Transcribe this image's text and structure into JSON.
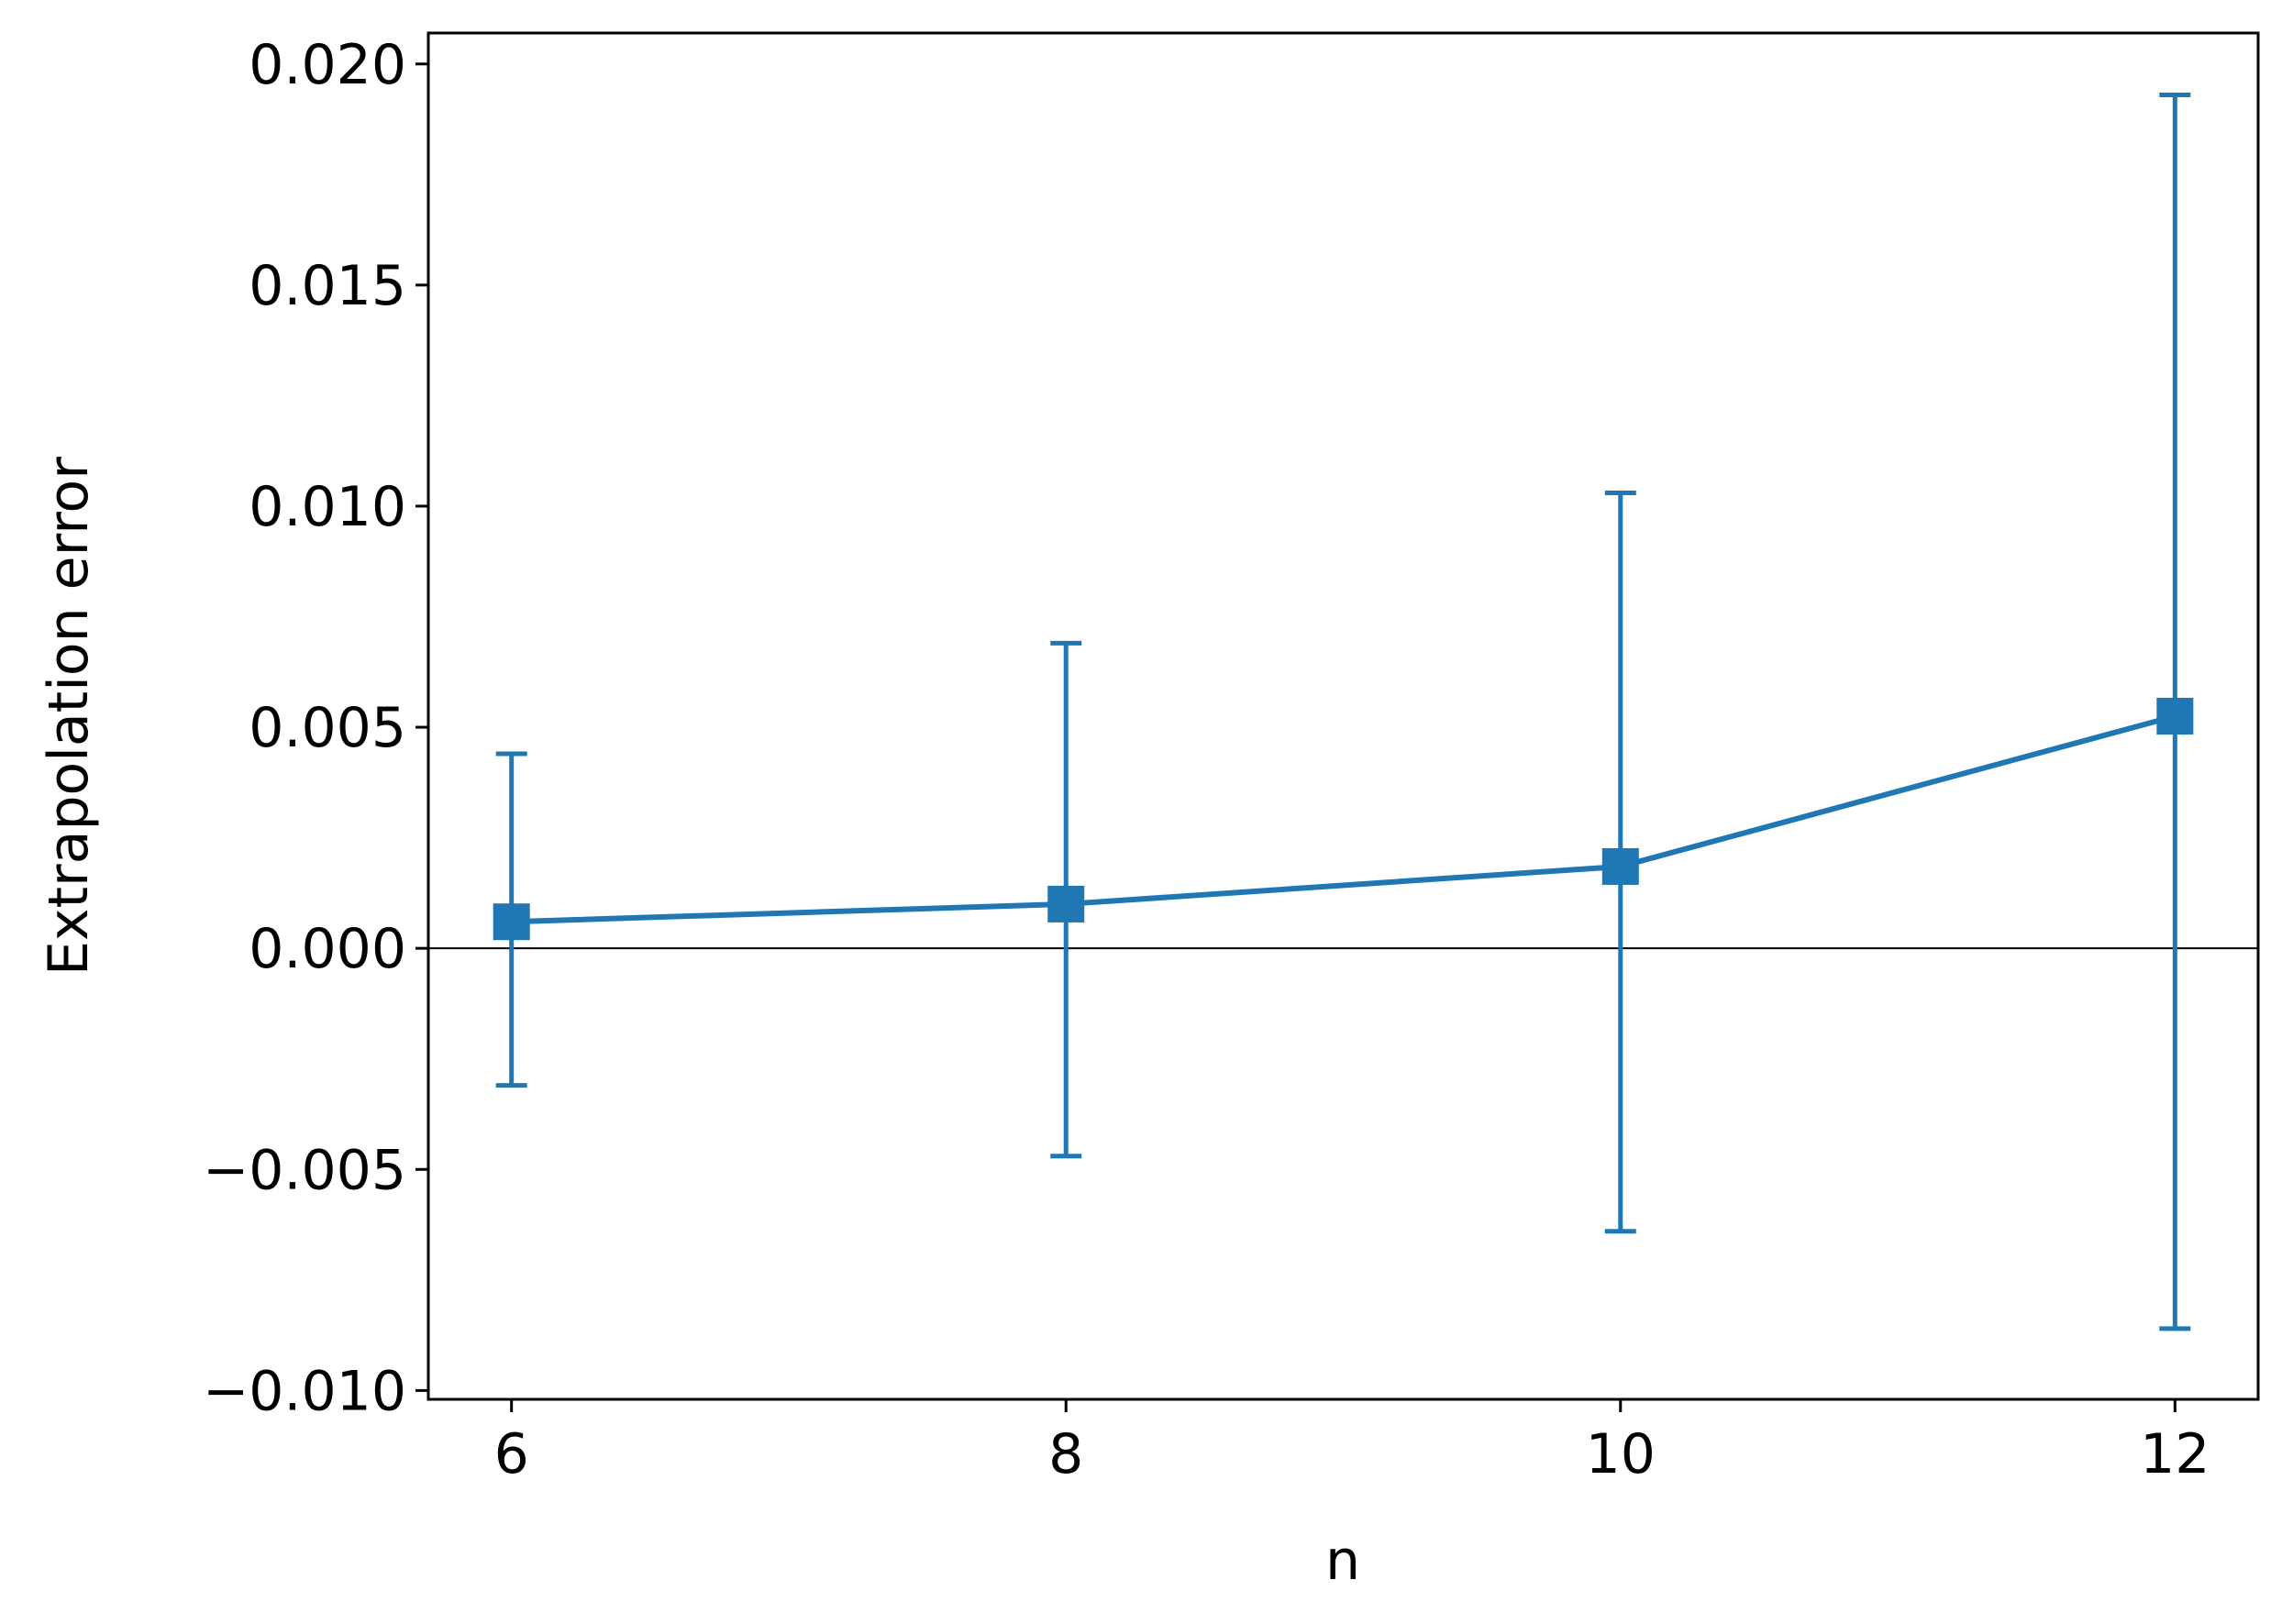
{
  "chart_data": {
    "type": "line",
    "title": "",
    "xlabel": "n",
    "ylabel": "Extrapolation error",
    "x": [
      6,
      8,
      10,
      12
    ],
    "series": [
      {
        "values": [
          0.0006,
          0.001,
          0.00185,
          0.00525
        ],
        "err_low": [
          -0.0031,
          -0.0047,
          -0.0064,
          -0.0086
        ],
        "err_high": [
          0.0044,
          0.0069,
          0.0103,
          0.0193
        ],
        "marker": "square",
        "color": "#1f77b4"
      }
    ],
    "xticks": [
      6,
      8,
      10,
      12
    ],
    "xtick_labels": [
      "6",
      "8",
      "10",
      "12"
    ],
    "yticks": [
      -0.01,
      -0.005,
      0.0,
      0.005,
      0.01,
      0.015,
      0.02
    ],
    "ytick_labels": [
      "−0.010",
      "−0.005",
      "0.000",
      "0.005",
      "0.010",
      "0.015",
      "0.020"
    ],
    "xlim": [
      5.7,
      12.3
    ],
    "ylim": [
      -0.0102,
      0.0207
    ],
    "reference_line_y": 0.0,
    "grid": false,
    "legend": "none"
  },
  "colors": {
    "series": "#1f77b4",
    "axes": "#000000",
    "background": "#ffffff"
  }
}
